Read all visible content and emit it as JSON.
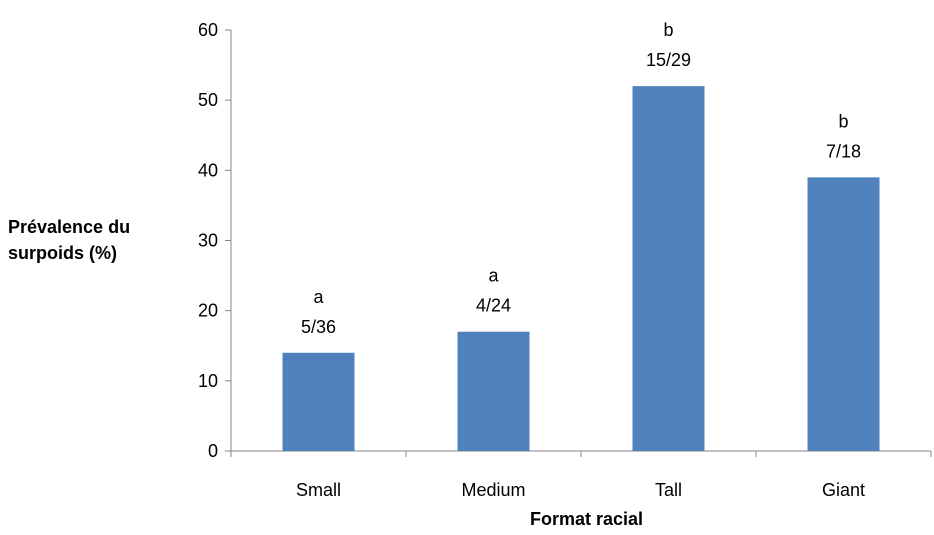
{
  "chart_data": {
    "type": "bar",
    "categories": [
      "Small",
      "Medium",
      "Tall",
      "Giant"
    ],
    "values": [
      14,
      17,
      52,
      39
    ],
    "annotations": [
      {
        "letter": "a",
        "ratio": "5/36"
      },
      {
        "letter": "a",
        "ratio": "4/24"
      },
      {
        "letter": "b",
        "ratio": "15/29"
      },
      {
        "letter": "b",
        "ratio": "7/18"
      }
    ],
    "title": "",
    "xlabel": "Format racial",
    "ylabel_lines": [
      "Prévalence du",
      "surpoids (%)"
    ],
    "ylim": [
      0,
      60
    ],
    "yticks": [
      0,
      10,
      20,
      30,
      40,
      50,
      60
    ],
    "grid": false,
    "bar_color": "#4F81BD"
  }
}
